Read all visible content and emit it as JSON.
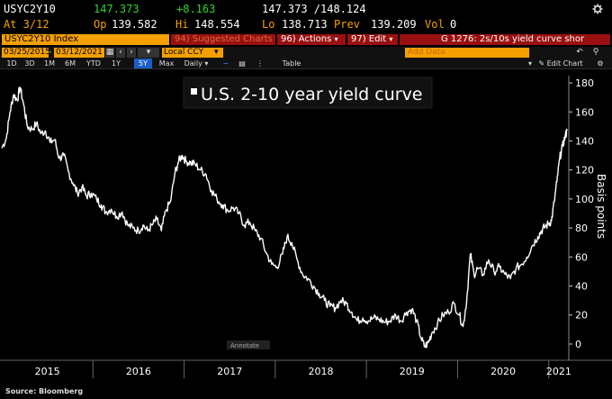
{
  "header": {
    "ticker": "USYC2Y10",
    "last": "147.373",
    "change": "+8.163",
    "range": "147.373 /148.124",
    "at": "At 3/12",
    "open_label": "Op",
    "open": "139.582",
    "high_label": "Hi",
    "high": "148.554",
    "low_label": "Lo",
    "low": "138.713",
    "prev_label": "Prev",
    "prev": "139.209",
    "vol_label": "Vol",
    "vol": "0"
  },
  "toolbar": {
    "security": "USYC2Y10 Index",
    "suggested": "94) Suggested Charts",
    "actions": "96) Actions",
    "edit": "97) Edit",
    "title_field": "G 1276: 2s/10s yield curve shor",
    "start_date": "03/25/2015",
    "end_date": "03/12/2021",
    "currency": "Local CCY",
    "add_data": "Add Data",
    "edit_chart": "Edit Chart"
  },
  "periods": [
    "1D",
    "3D",
    "1M",
    "6M",
    "YTD",
    "1Y",
    "5Y",
    "Max"
  ],
  "active_period": "5Y",
  "frequency": "Daily",
  "table_label": "Table",
  "annotate_label": "Annotate",
  "source": "Source: Bloomberg",
  "colors": {
    "green": "#2bd62b",
    "orange": "#f5a000",
    "red_bar": "#9a1010",
    "chart_line": "#ffffff"
  },
  "chart_data": {
    "type": "line",
    "title": "U.S. 2-10 year yield curve",
    "ylabel": "Basis points",
    "ylim": [
      -5,
      185
    ],
    "yticks": [
      0,
      20,
      40,
      60,
      80,
      100,
      120,
      140,
      160,
      180
    ],
    "xtick_labels": [
      "2015",
      "2016",
      "2017",
      "2018",
      "2019",
      "2020",
      "2021"
    ],
    "xlim": [
      2015.0,
      2021.22
    ],
    "series": [
      {
        "values": [
          [
            2015.0,
            135
          ],
          [
            2015.05,
            142
          ],
          [
            2015.09,
            160
          ],
          [
            2015.13,
            172
          ],
          [
            2015.17,
            168
          ],
          [
            2015.2,
            177
          ],
          [
            2015.24,
            165
          ],
          [
            2015.28,
            150
          ],
          [
            2015.33,
            148
          ],
          [
            2015.38,
            152
          ],
          [
            2015.43,
            145
          ],
          [
            2015.48,
            147
          ],
          [
            2015.53,
            139
          ],
          [
            2015.58,
            141
          ],
          [
            2015.63,
            128
          ],
          [
            2015.68,
            130
          ],
          [
            2015.73,
            119
          ],
          [
            2015.78,
            111
          ],
          [
            2015.83,
            104
          ],
          [
            2015.88,
            108
          ],
          [
            2015.93,
            102
          ],
          [
            2015.98,
            104
          ],
          [
            2016.04,
            100
          ],
          [
            2016.09,
            96
          ],
          [
            2016.14,
            91
          ],
          [
            2016.2,
            93
          ],
          [
            2016.26,
            88
          ],
          [
            2016.32,
            91
          ],
          [
            2016.38,
            82
          ],
          [
            2016.44,
            80
          ],
          [
            2016.5,
            78
          ],
          [
            2016.55,
            82
          ],
          [
            2016.6,
            78
          ],
          [
            2016.65,
            82
          ],
          [
            2016.7,
            86
          ],
          [
            2016.75,
            78
          ],
          [
            2016.8,
            92
          ],
          [
            2016.85,
            98
          ],
          [
            2016.9,
            118
          ],
          [
            2016.94,
            126
          ],
          [
            2016.98,
            130
          ],
          [
            2017.02,
            126
          ],
          [
            2017.07,
            125
          ],
          [
            2017.12,
            124
          ],
          [
            2017.18,
            120
          ],
          [
            2017.24,
            117
          ],
          [
            2017.3,
            106
          ],
          [
            2017.36,
            100
          ],
          [
            2017.42,
            96
          ],
          [
            2017.48,
            92
          ],
          [
            2017.54,
            94
          ],
          [
            2017.6,
            90
          ],
          [
            2017.66,
            82
          ],
          [
            2017.72,
            84
          ],
          [
            2017.78,
            78
          ],
          [
            2017.84,
            73
          ],
          [
            2017.9,
            63
          ],
          [
            2017.96,
            55
          ],
          [
            2018.02,
            53
          ],
          [
            2018.08,
            62
          ],
          [
            2018.13,
            74
          ],
          [
            2018.18,
            70
          ],
          [
            2018.24,
            58
          ],
          [
            2018.3,
            48
          ],
          [
            2018.36,
            45
          ],
          [
            2018.42,
            40
          ],
          [
            2018.48,
            35
          ],
          [
            2018.54,
            30
          ],
          [
            2018.6,
            26
          ],
          [
            2018.66,
            25
          ],
          [
            2018.72,
            30
          ],
          [
            2018.78,
            28
          ],
          [
            2018.84,
            22
          ],
          [
            2018.9,
            16
          ],
          [
            2018.96,
            18
          ],
          [
            2019.02,
            16
          ],
          [
            2019.08,
            18
          ],
          [
            2019.14,
            17
          ],
          [
            2019.2,
            15
          ],
          [
            2019.26,
            16
          ],
          [
            2019.32,
            20
          ],
          [
            2019.38,
            16
          ],
          [
            2019.44,
            22
          ],
          [
            2019.5,
            24
          ],
          [
            2019.55,
            16
          ],
          [
            2019.6,
            4
          ],
          [
            2019.64,
            -2
          ],
          [
            2019.68,
            1
          ],
          [
            2019.72,
            8
          ],
          [
            2019.78,
            14
          ],
          [
            2019.84,
            20
          ],
          [
            2019.9,
            22
          ],
          [
            2019.96,
            28
          ],
          [
            2020.02,
            20
          ],
          [
            2020.06,
            12
          ],
          [
            2020.1,
            30
          ],
          [
            2020.14,
            62
          ],
          [
            2020.18,
            48
          ],
          [
            2020.22,
            52
          ],
          [
            2020.28,
            48
          ],
          [
            2020.34,
            58
          ],
          [
            2020.4,
            50
          ],
          [
            2020.46,
            53
          ],
          [
            2020.52,
            48
          ],
          [
            2020.58,
            45
          ],
          [
            2020.64,
            52
          ],
          [
            2020.7,
            55
          ],
          [
            2020.76,
            60
          ],
          [
            2020.82,
            68
          ],
          [
            2020.88,
            74
          ],
          [
            2020.92,
            78
          ],
          [
            2020.96,
            81
          ],
          [
            2021.0,
            83
          ],
          [
            2021.03,
            85
          ],
          [
            2021.06,
            98
          ],
          [
            2021.09,
            112
          ],
          [
            2021.12,
            128
          ],
          [
            2021.15,
            136
          ],
          [
            2021.18,
            143
          ],
          [
            2021.2,
            147
          ]
        ]
      }
    ]
  }
}
